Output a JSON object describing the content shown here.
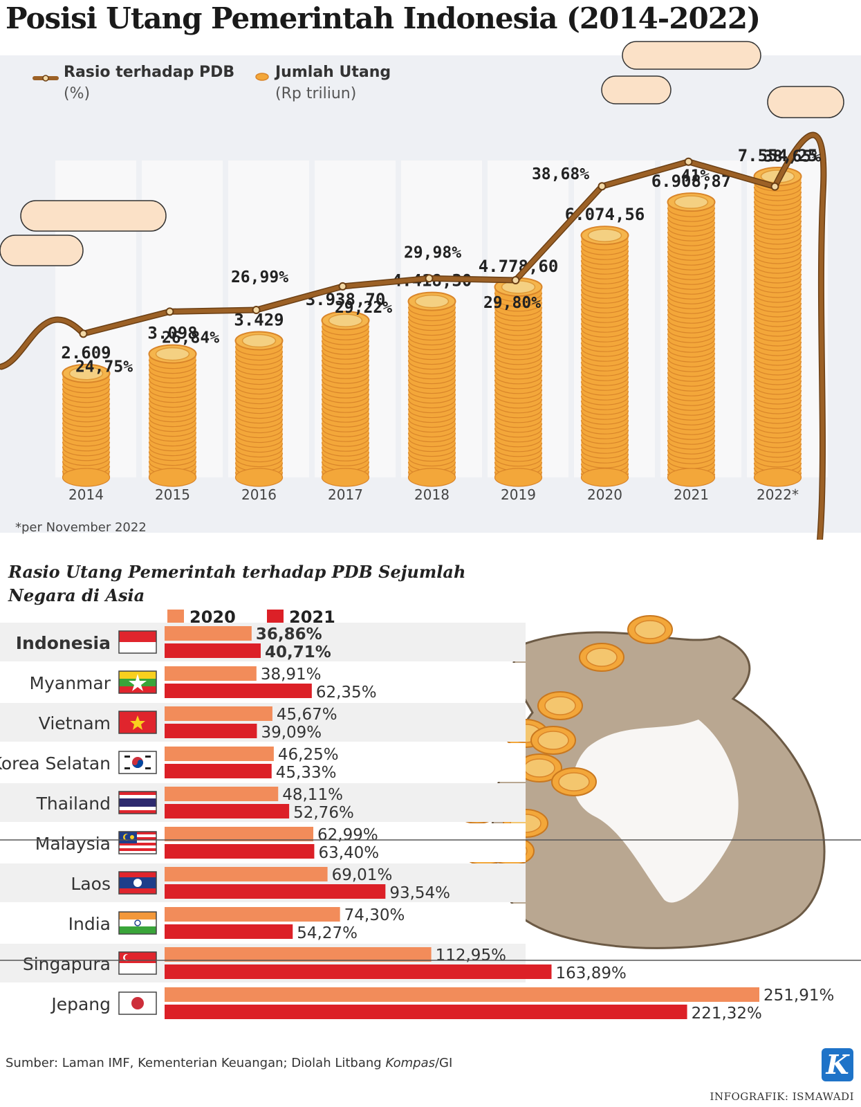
{
  "title": "Posisi Utang Pemerintah Indonesia (2014-2022)",
  "legend": {
    "ratio_label": "Rasio terhadap PDB",
    "ratio_unit": "(%)",
    "debt_label": "Jumlah Utang",
    "debt_unit": "(Rp triliun)"
  },
  "footnote": "*per November 2022",
  "colors": {
    "coin": "#f3a73a",
    "coin_edge": "#d9852a",
    "rope": "#9c6126",
    "bar_2020": "#f28c5a",
    "bar_2021": "#dc2027",
    "panel_bg": "#eef0f4"
  },
  "chart_data": [
    {
      "type": "bar",
      "categories": [
        "2014",
        "2015",
        "2016",
        "2017",
        "2018",
        "2019",
        "2020",
        "2021",
        "2022*"
      ],
      "series": [
        {
          "name": "Jumlah Utang",
          "values": [
            2609,
            3098,
            3429,
            3938.7,
            4418.3,
            4778.6,
            6074.56,
            6908.87,
            7554.25
          ],
          "labels": [
            "2.609",
            "3.098",
            "3.429",
            "3.938,70",
            "4.418,30",
            "4.778,60",
            "6.074,56",
            "6.908,87",
            "7.554,25"
          ]
        },
        {
          "name": "Rasio terhadap PDB",
          "type": "line",
          "values": [
            24.75,
            26.84,
            26.99,
            29.22,
            29.98,
            29.8,
            38.68,
            41,
            38.65
          ],
          "labels": [
            "24,75%",
            "26,84%",
            "26,99%",
            "29,22%",
            "29,98%",
            "29,80%",
            "38,68%",
            "41%",
            "38,65%"
          ]
        }
      ]
    },
    {
      "type": "bar",
      "title": "Rasio Utang Pemerintah terhadap PDB Sejumlah Negara di Asia",
      "categories": [
        "Indonesia",
        "Myanmar",
        "Vietnam",
        "Korea Selatan",
        "Thailand",
        "Malaysia",
        "Laos",
        "India",
        "Singapura",
        "Jepang"
      ],
      "series": [
        {
          "name": "2020",
          "values": [
            36.86,
            38.91,
            45.67,
            46.25,
            48.11,
            62.99,
            69.01,
            74.3,
            112.95,
            251.91
          ],
          "labels": [
            "36,86%",
            "38,91%",
            "45,67%",
            "46,25%",
            "48,11%",
            "62,99%",
            "69,01%",
            "74,30%",
            "112,95%",
            "251,91%"
          ]
        },
        {
          "name": "2021",
          "values": [
            40.71,
            62.35,
            39.09,
            45.33,
            52.76,
            63.4,
            93.54,
            54.27,
            163.89,
            221.32
          ],
          "labels": [
            "40,71%",
            "62,35%",
            "39,09%",
            "45,33%",
            "52,76%",
            "63,40%",
            "93,54%",
            "54,27%",
            "163,89%",
            "221,32%"
          ]
        }
      ]
    }
  ],
  "source": {
    "prefix": "Sumber: Laman IMF, Kementerian Keuangan; Diolah Litbang ",
    "italic": "Kompas",
    "suffix": "/GI"
  },
  "credit": "INFOGRAFIK: ISMAWADI",
  "logo_letter": "K"
}
